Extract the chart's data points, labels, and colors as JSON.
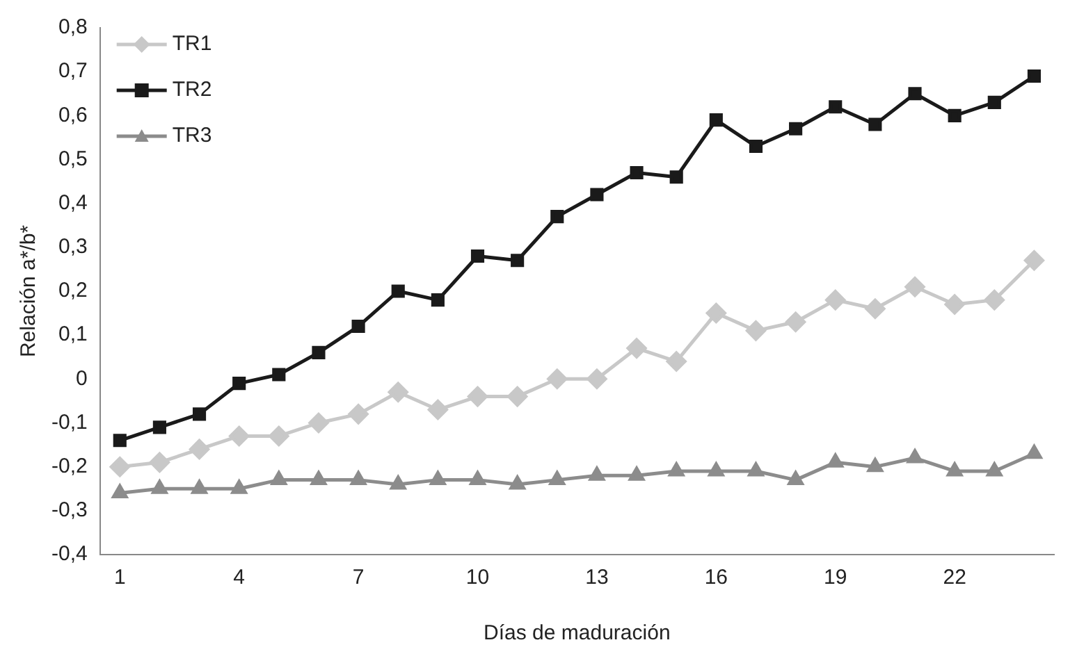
{
  "chart_data": {
    "type": "line",
    "xlabel": "Días de maduración",
    "ylabel": "Relación a*/b*",
    "categories": [
      "1",
      null,
      null,
      "4",
      null,
      null,
      "7",
      null,
      null,
      "10",
      null,
      null,
      "13",
      null,
      null,
      "16",
      null,
      null,
      "19",
      null,
      null,
      "22",
      null,
      null
    ],
    "series": [
      {
        "name": "TR1",
        "color": "#c8c8c8",
        "marker": "diamond",
        "values": [
          -0.2,
          -0.19,
          -0.16,
          -0.13,
          -0.13,
          -0.1,
          -0.08,
          -0.03,
          -0.07,
          -0.04,
          -0.04,
          0,
          0,
          0.07,
          0.04,
          0.15,
          0.11,
          0.13,
          0.18,
          0.16,
          0.21,
          0.17,
          0.18,
          0.27
        ]
      },
      {
        "name": "TR2",
        "color": "#1a1a1a",
        "marker": "square",
        "values": [
          -0.14,
          -0.11,
          -0.08,
          -0.01,
          0.01,
          0.06,
          0.12,
          0.2,
          0.18,
          0.28,
          0.27,
          0.37,
          0.42,
          0.47,
          0.46,
          0.59,
          0.53,
          0.57,
          0.62,
          0.58,
          0.65,
          0.6,
          0.63,
          0.69
        ]
      },
      {
        "name": "TR3",
        "color": "#8c8c8c",
        "marker": "triangle",
        "values": [
          -0.26,
          -0.25,
          -0.25,
          -0.25,
          -0.23,
          -0.23,
          -0.23,
          -0.24,
          -0.23,
          -0.23,
          -0.24,
          -0.23,
          -0.22,
          -0.22,
          -0.21,
          -0.21,
          -0.21,
          -0.23,
          -0.19,
          -0.2,
          -0.18,
          -0.21,
          -0.21,
          -0.17
        ]
      }
    ],
    "ylim": [
      -0.4,
      0.8
    ],
    "yticks": [
      {
        "value": -0.4,
        "label": "-0,4"
      },
      {
        "value": -0.3,
        "label": "-0,3"
      },
      {
        "value": -0.2,
        "label": "-0,2"
      },
      {
        "value": -0.1,
        "label": "-0,1"
      },
      0,
      {
        "value": 0.1,
        "label": "0,1"
      },
      {
        "value": 0.2,
        "label": "0,2"
      },
      {
        "value": 0.3,
        "label": "0,3"
      },
      {
        "value": 0.4,
        "label": "0,4"
      },
      {
        "value": 0.5,
        "label": "0,5"
      },
      {
        "value": 0.6,
        "label": "0,6"
      },
      {
        "value": 0.7,
        "label": "0,7"
      },
      {
        "value": 0.8,
        "label": "0,8"
      }
    ],
    "grid": false,
    "legend": "top left",
    "line_style": "solid"
  }
}
